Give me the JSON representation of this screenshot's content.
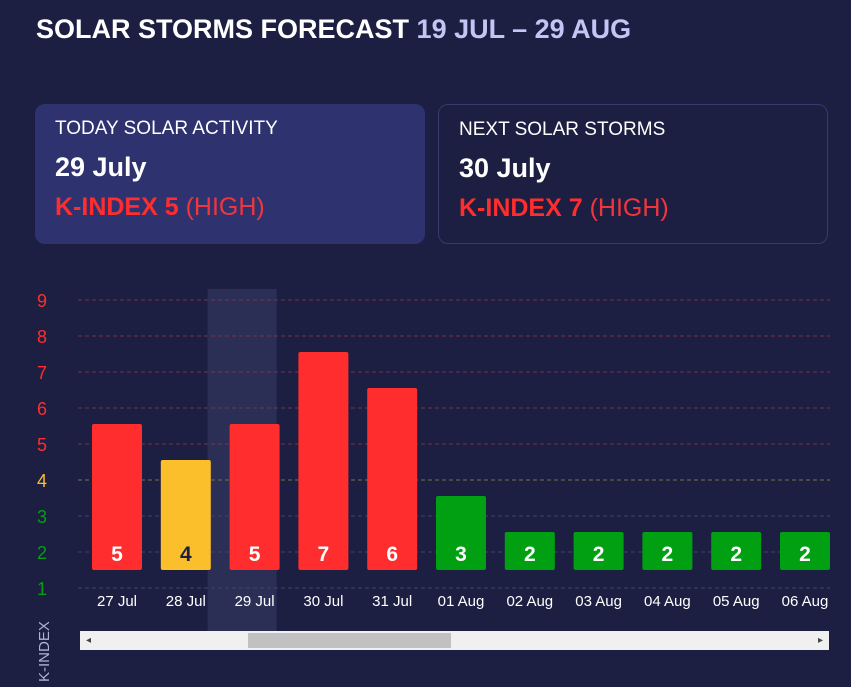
{
  "header": {
    "title": "SOLAR STORMS FORECAST",
    "range": "19 JUL – 29 AUG"
  },
  "cards": [
    {
      "label": "TODAY SOLAR ACTIVITY",
      "date": "29 July",
      "kindex": "K-INDEX 5",
      "level": "(HIGH)"
    },
    {
      "label": "NEXT SOLAR STORMS",
      "date": "30 July",
      "kindex": "K-INDEX 7",
      "level": "(HIGH)"
    }
  ],
  "chart_data": {
    "type": "bar",
    "ylabel": "K-INDEX",
    "yticks": [
      1,
      2,
      3,
      4,
      5,
      6,
      7,
      8,
      9
    ],
    "ylim": [
      1,
      9
    ],
    "categories": [
      "27 Jul",
      "28 Jul",
      "29 Jul",
      "30 Jul",
      "31 Jul",
      "01 Aug",
      "02 Aug",
      "03 Aug",
      "04 Aug",
      "05 Aug",
      "06 Aug"
    ],
    "values": [
      5,
      4,
      5,
      7,
      6,
      3,
      2,
      2,
      2,
      2,
      2
    ],
    "highlighted": "29 Jul",
    "grid": true,
    "colors": {
      "high": "#ff2d2d",
      "moderate": "#fbbf2b",
      "low": "#00a012"
    }
  },
  "scrollbar": {
    "left_arrow": "◂",
    "right_arrow": "▸"
  }
}
